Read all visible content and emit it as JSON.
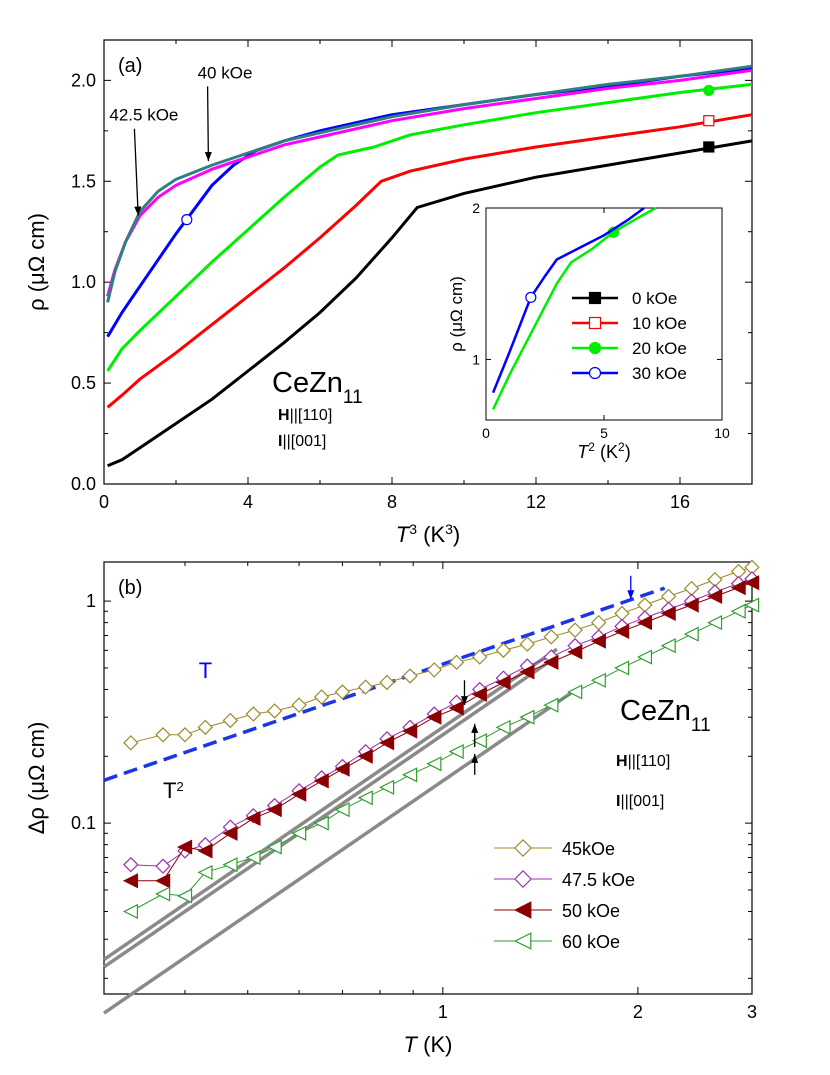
{
  "chart_data": [
    {
      "type": "line",
      "panel_label": "(a)",
      "xlabel_italic": "T",
      "xlabel_sup": "3",
      "xlabel_rest": " (K",
      "xlabel_sup2": "3",
      "xlabel_end": ")",
      "ylabel": "ρ (μΩ cm)",
      "xlim": [
        0,
        18
      ],
      "ylim": [
        0,
        2.2
      ],
      "xticks": [
        0,
        4,
        8,
        12,
        16
      ],
      "xtick_labels": [
        "0",
        "4",
        "8",
        "12",
        "16"
      ],
      "yticks": [
        0.0,
        0.5,
        1.0,
        1.5,
        2.0
      ],
      "ytick_labels": [
        "0.0",
        "0.5",
        "1.0",
        "1.5",
        "2.0"
      ],
      "sample": {
        "main": "CeZn",
        "sub": "11"
      },
      "field_dir": {
        "bold": "H",
        "rest": "||[110]"
      },
      "current_dir": {
        "bold": "I",
        "rest": "||[001]"
      },
      "annotations": [
        {
          "text": "40 kOe",
          "x": 2.6,
          "y": 2.01,
          "arrow_to": [
            2.9,
            1.6
          ]
        },
        {
          "text": "42.5 kOe",
          "x": 0.15,
          "y": 1.8,
          "arrow_to": [
            0.95,
            1.33
          ]
        }
      ],
      "series": [
        {
          "color": "#000000",
          "marker": "square-filled",
          "marker_at": [
            16.8,
            1.67
          ],
          "x": [
            0.1,
            0.5,
            1.0,
            2.0,
            3.0,
            4.0,
            5.0,
            6.0,
            7.0,
            8.0,
            8.7,
            10.0,
            12.0,
            14.0,
            16.0,
            18.0
          ],
          "y": [
            0.09,
            0.12,
            0.18,
            0.3,
            0.42,
            0.56,
            0.7,
            0.85,
            1.02,
            1.22,
            1.37,
            1.44,
            1.52,
            1.58,
            1.64,
            1.7
          ]
        },
        {
          "color": "#ff0000",
          "marker": "square-open",
          "marker_at": [
            16.8,
            1.8
          ],
          "x": [
            0.1,
            0.5,
            1.0,
            2.0,
            3.0,
            4.0,
            5.0,
            6.0,
            7.0,
            7.7,
            8.5,
            10.0,
            12.0,
            14.0,
            16.0,
            18.0
          ],
          "y": [
            0.38,
            0.44,
            0.52,
            0.65,
            0.79,
            0.93,
            1.07,
            1.22,
            1.38,
            1.5,
            1.55,
            1.61,
            1.67,
            1.72,
            1.77,
            1.83
          ]
        },
        {
          "color": "#00ee00",
          "marker": "circle-filled",
          "marker_at": [
            16.8,
            1.95
          ],
          "x": [
            0.1,
            0.5,
            1.0,
            2.0,
            3.0,
            4.0,
            5.0,
            6.0,
            6.5,
            7.5,
            8.5,
            10.0,
            12.0,
            14.0,
            16.0,
            18.0
          ],
          "y": [
            0.56,
            0.67,
            0.76,
            0.93,
            1.1,
            1.26,
            1.42,
            1.57,
            1.63,
            1.67,
            1.73,
            1.78,
            1.84,
            1.89,
            1.94,
            1.98
          ]
        },
        {
          "color": "#0000ff",
          "marker": "circle-open",
          "marker_at": [
            2.3,
            1.31
          ],
          "x": [
            0.1,
            0.5,
            1.0,
            2.0,
            3.0,
            3.6,
            4.2,
            5.0,
            6.0,
            7.0,
            8.0,
            10.0,
            12.0,
            14.0,
            16.0,
            18.0
          ],
          "y": [
            0.73,
            0.85,
            0.98,
            1.24,
            1.48,
            1.58,
            1.65,
            1.7,
            1.75,
            1.79,
            1.83,
            1.88,
            1.93,
            1.97,
            2.02,
            2.06
          ]
        },
        {
          "color": "#ff00ff",
          "marker": "none",
          "x": [
            0.1,
            0.3,
            0.6,
            1.0,
            1.5,
            2.0,
            3.0,
            4.0,
            5.0,
            6.0,
            8.0,
            10.0,
            12.0,
            14.0,
            16.0,
            18.0
          ],
          "y": [
            0.93,
            1.06,
            1.2,
            1.33,
            1.42,
            1.48,
            1.56,
            1.62,
            1.68,
            1.72,
            1.8,
            1.86,
            1.91,
            1.96,
            2.0,
            2.05
          ]
        },
        {
          "color": "#2f7f7f",
          "marker": "none",
          "x": [
            0.1,
            0.3,
            0.6,
            1.0,
            1.5,
            2.0,
            3.0,
            4.0,
            5.0,
            6.0,
            8.0,
            10.0,
            12.0,
            14.0,
            16.0,
            18.0
          ],
          "y": [
            0.9,
            1.05,
            1.2,
            1.35,
            1.45,
            1.51,
            1.58,
            1.64,
            1.7,
            1.74,
            1.82,
            1.88,
            1.93,
            1.98,
            2.02,
            2.07
          ]
        }
      ],
      "inset": {
        "xlabel_italic": "T",
        "xlabel_sup": "2",
        "xlabel_rest": " (K",
        "xlabel_sup2": "2",
        "xlabel_end": ")",
        "ylabel": "ρ (μΩ cm)",
        "xlim": [
          0,
          10
        ],
        "ylim": [
          0.6,
          2.0
        ],
        "xticks": [
          0,
          5,
          10
        ],
        "xtick_labels": [
          "0",
          "5",
          "10"
        ],
        "yticks": [
          1,
          2
        ],
        "ytick_labels": [
          "1",
          "2"
        ],
        "series": [
          {
            "color": "#00ee00",
            "marker": "circle-filled",
            "marker_at": [
              5.4,
              1.84
            ],
            "x": [
              0.3,
              1.0,
              2.0,
              3.0,
              3.6,
              4.5,
              5.4,
              6.5,
              7.2
            ],
            "y": [
              0.67,
              0.9,
              1.2,
              1.5,
              1.64,
              1.73,
              1.84,
              1.94,
              2.0
            ]
          },
          {
            "color": "#0000ff",
            "marker": "circle-open",
            "marker_at": [
              1.9,
              1.41
            ],
            "x": [
              0.3,
              1.0,
              1.9,
              2.5,
              3.0,
              4.0,
              5.0,
              6.0,
              6.7
            ],
            "y": [
              0.78,
              1.05,
              1.41,
              1.55,
              1.66,
              1.74,
              1.82,
              1.92,
              2.0
            ]
          }
        ]
      },
      "legend": [
        {
          "label": "0 kOe",
          "color": "#000000",
          "marker": "square-filled"
        },
        {
          "label": "10 kOe",
          "color": "#ff0000",
          "marker": "square-open"
        },
        {
          "label": "20 kOe",
          "color": "#00ee00",
          "marker": "circle-filled"
        },
        {
          "label": "30 kOe",
          "color": "#0000ff",
          "marker": "circle-open"
        }
      ]
    },
    {
      "type": "scatter",
      "panel_label": "(b)",
      "xscale": "log",
      "yscale": "log",
      "xlabel_italic": "T",
      "xlabel_rest": " (K)",
      "ylabel": "Δρ (μΩ cm)",
      "xlim": [
        0.3,
        3.0
      ],
      "ylim": [
        0.017,
        1.5
      ],
      "xticks": [
        1,
        2,
        3
      ],
      "xtick_labels": [
        "1",
        "2",
        "3"
      ],
      "yticks": [
        0.1,
        1
      ],
      "ytick_labels": [
        "0.1",
        "1"
      ],
      "sample": {
        "main": "CeZn",
        "sub": "11"
      },
      "field_dir": {
        "bold": "H",
        "rest": "||[110]"
      },
      "current_dir": {
        "bold": "I",
        "rest": "||[001]"
      },
      "text_labels": [
        {
          "text": "T",
          "x": 0.42,
          "y": 0.45,
          "color": "#0000ff"
        },
        {
          "text": "T",
          "sup": "2",
          "x": 0.37,
          "y": 0.13,
          "color": "#000000"
        }
      ],
      "arrows": [
        {
          "x": 1.95,
          "y_from": 1.3,
          "y_to": 1.02,
          "color": "#0000ff"
        },
        {
          "x": 1.08,
          "y_from": 0.44,
          "y_to": 0.34,
          "color": "#000000"
        },
        {
          "x": 1.12,
          "y_from": 0.22,
          "y_to": 0.28,
          "color": "#000000"
        },
        {
          "x": 1.12,
          "y_from": 0.165,
          "y_to": 0.205,
          "color": "#000000"
        }
      ],
      "fit_T": {
        "color": "#1a36e6",
        "x": [
          0.3,
          2.2
        ],
        "amplitude": 0.52
      },
      "fit_T2": [
        {
          "x": [
            0.3,
            1.5
          ],
          "amplitude": 0.27
        },
        {
          "x": [
            0.3,
            1.45
          ],
          "amplitude": 0.25
        },
        {
          "x": [
            0.3,
            1.6
          ],
          "amplitude": 0.155
        }
      ],
      "series": [
        {
          "name": "45kOe",
          "color": "#9c8a2a",
          "marker": "diamond-open",
          "x": [
            0.33,
            0.37,
            0.4,
            0.43,
            0.47,
            0.51,
            0.55,
            0.6,
            0.65,
            0.7,
            0.76,
            0.82,
            0.89,
            0.97,
            1.05,
            1.14,
            1.24,
            1.35,
            1.47,
            1.6,
            1.74,
            1.89,
            2.05,
            2.23,
            2.42,
            2.63,
            2.86,
            3.0
          ],
          "y": [
            0.23,
            0.25,
            0.25,
            0.27,
            0.29,
            0.31,
            0.32,
            0.34,
            0.37,
            0.39,
            0.41,
            0.43,
            0.46,
            0.49,
            0.53,
            0.56,
            0.6,
            0.64,
            0.69,
            0.74,
            0.8,
            0.88,
            0.96,
            1.05,
            1.14,
            1.25,
            1.36,
            1.42
          ]
        },
        {
          "name": "47.5 kOe",
          "color": "#9b30b0",
          "marker": "diamond-open",
          "x": [
            0.33,
            0.37,
            0.4,
            0.43,
            0.47,
            0.51,
            0.55,
            0.6,
            0.65,
            0.7,
            0.76,
            0.82,
            0.89,
            0.97,
            1.05,
            1.14,
            1.24,
            1.35,
            1.47,
            1.6,
            1.74,
            1.89,
            2.05,
            2.23,
            2.42,
            2.63,
            2.86,
            3.0
          ],
          "y": [
            0.065,
            0.064,
            0.075,
            0.08,
            0.096,
            0.108,
            0.12,
            0.14,
            0.16,
            0.18,
            0.21,
            0.24,
            0.27,
            0.31,
            0.35,
            0.4,
            0.45,
            0.51,
            0.56,
            0.63,
            0.69,
            0.77,
            0.84,
            0.92,
            1.0,
            1.1,
            1.2,
            1.26
          ]
        },
        {
          "name": "50 kOe",
          "color": "#8b0000",
          "marker": "triangle-left-filled",
          "x": [
            0.33,
            0.37,
            0.4,
            0.43,
            0.47,
            0.51,
            0.55,
            0.6,
            0.65,
            0.7,
            0.76,
            0.82,
            0.89,
            0.97,
            1.05,
            1.14,
            1.24,
            1.35,
            1.47,
            1.6,
            1.74,
            1.89,
            2.05,
            2.23,
            2.42,
            2.63,
            2.86,
            3.0
          ],
          "y": [
            0.055,
            0.055,
            0.078,
            0.075,
            0.09,
            0.105,
            0.115,
            0.135,
            0.155,
            0.175,
            0.2,
            0.23,
            0.26,
            0.3,
            0.33,
            0.38,
            0.43,
            0.48,
            0.53,
            0.59,
            0.66,
            0.73,
            0.8,
            0.88,
            0.96,
            1.05,
            1.15,
            1.21
          ]
        },
        {
          "name": "60 kOe",
          "color": "#2e9e2e",
          "marker": "triangle-left-open",
          "x": [
            0.33,
            0.37,
            0.4,
            0.43,
            0.47,
            0.51,
            0.55,
            0.6,
            0.65,
            0.7,
            0.76,
            0.82,
            0.89,
            0.97,
            1.05,
            1.14,
            1.24,
            1.35,
            1.47,
            1.6,
            1.74,
            1.89,
            2.05,
            2.23,
            2.42,
            2.63,
            2.86,
            3.0
          ],
          "y": [
            0.04,
            0.048,
            0.047,
            0.06,
            0.065,
            0.07,
            0.078,
            0.09,
            0.1,
            0.115,
            0.13,
            0.145,
            0.165,
            0.185,
            0.21,
            0.235,
            0.27,
            0.3,
            0.34,
            0.39,
            0.44,
            0.5,
            0.56,
            0.63,
            0.71,
            0.8,
            0.9,
            0.96
          ]
        }
      ]
    }
  ]
}
